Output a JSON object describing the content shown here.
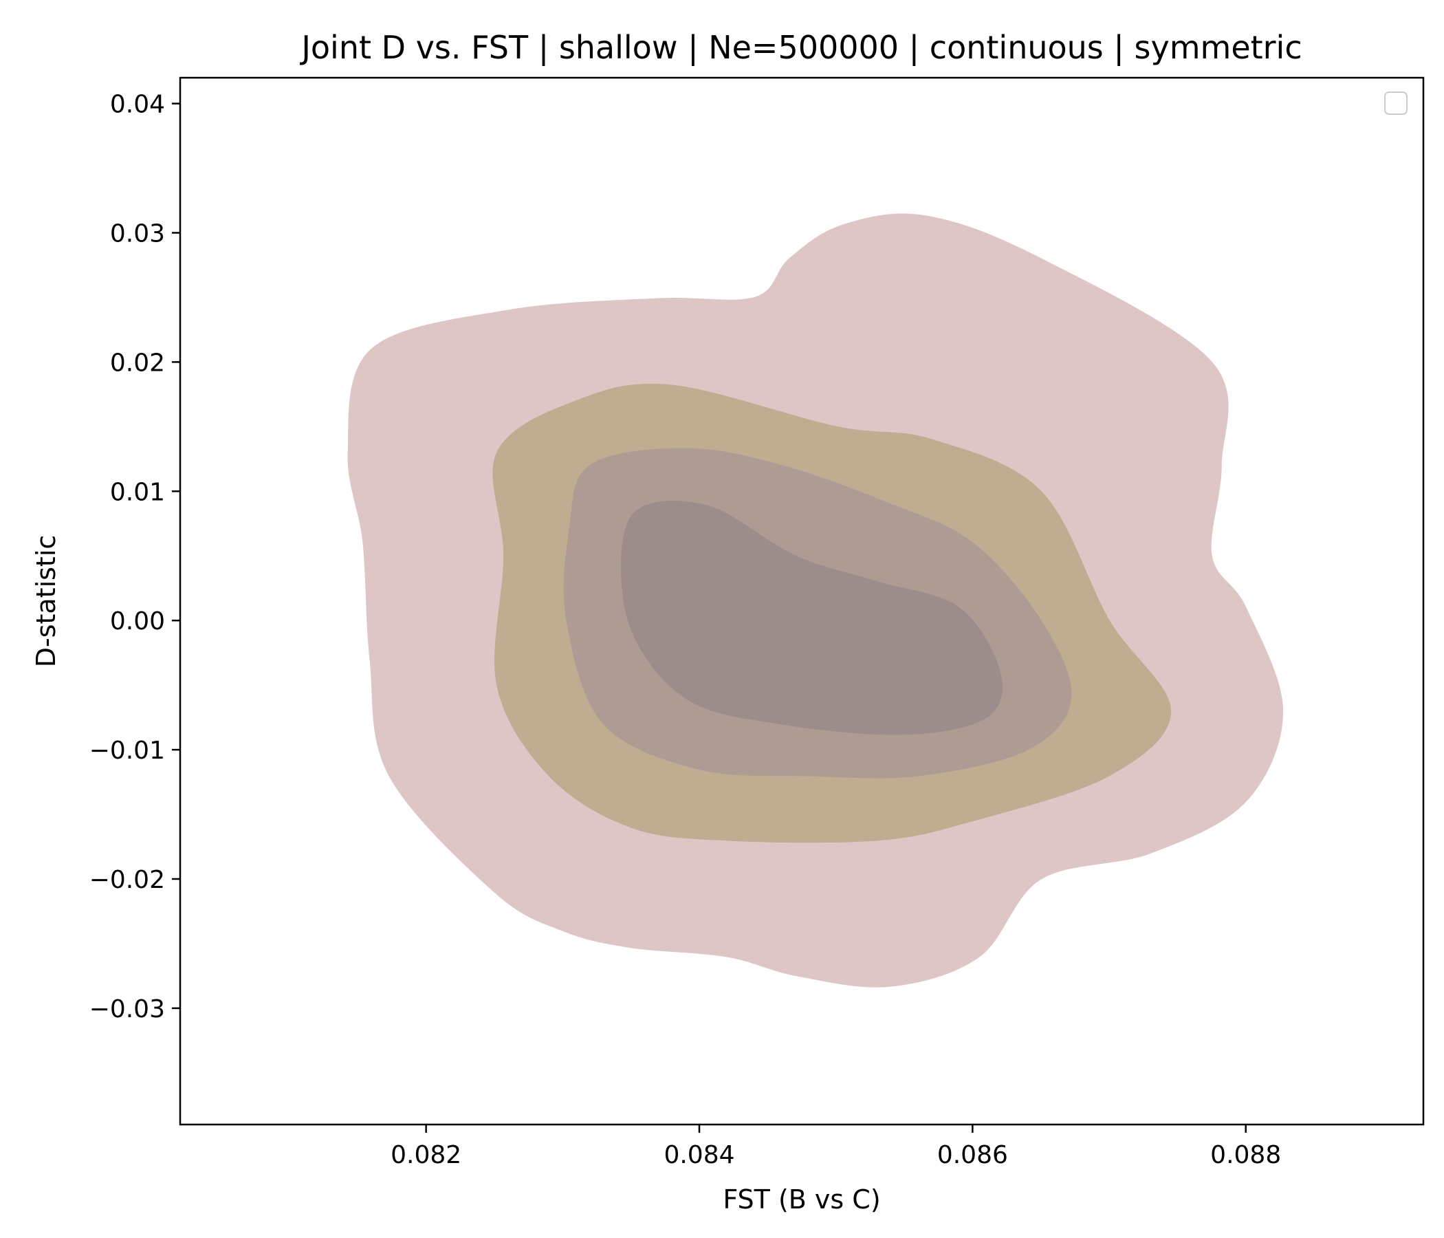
{
  "chart_data": {
    "type": "kde-contour",
    "title": "Joint D vs. FST | shallow | Ne=500000 | continuous | symmetric",
    "xlabel": "FST (B vs C)",
    "ylabel": "D-statistic",
    "xlim": [
      0.0802,
      0.0893
    ],
    "ylim": [
      -0.039,
      0.042
    ],
    "xticks": [
      0.082,
      0.084,
      0.086,
      0.088
    ],
    "xtick_labels": [
      "0.082",
      "0.084",
      "0.086",
      "0.088"
    ],
    "yticks": [
      0.04,
      0.03,
      0.02,
      0.01,
      0.0,
      -0.01,
      -0.02,
      -0.03
    ],
    "ytick_labels": [
      "0.04",
      "0.03",
      "0.02",
      "0.01",
      "0.00",
      "−0.01",
      "−0.02",
      "−0.03"
    ],
    "grid": false,
    "legend": {
      "placement": "upper-right",
      "entries": []
    },
    "contour_levels": [
      {
        "level": 1,
        "color": "#dfc6c6",
        "points": [
          [
            0.08566,
            0.0313
          ],
          [
            0.08505,
            0.0306
          ],
          [
            0.08466,
            0.028
          ],
          [
            0.08441,
            0.025
          ],
          [
            0.0837,
            0.0249
          ],
          [
            0.0826,
            0.024
          ],
          [
            0.0816,
            0.021
          ],
          [
            0.08143,
            0.013
          ],
          [
            0.08154,
            0.006
          ],
          [
            0.08159,
            -0.003
          ],
          [
            0.08173,
            -0.012
          ],
          [
            0.0825,
            -0.021
          ],
          [
            0.083,
            -0.024
          ],
          [
            0.0835,
            -0.0253
          ],
          [
            0.0842,
            -0.026
          ],
          [
            0.08472,
            -0.0275
          ],
          [
            0.0854,
            -0.0283
          ],
          [
            0.08605,
            -0.026
          ],
          [
            0.0865,
            -0.02
          ],
          [
            0.0873,
            -0.018
          ],
          [
            0.088,
            -0.014
          ],
          [
            0.08827,
            -0.007
          ],
          [
            0.088,
            0.001
          ],
          [
            0.08775,
            0.005
          ],
          [
            0.08782,
            0.012
          ],
          [
            0.08775,
            0.02
          ],
          [
            0.0865,
            0.028
          ]
        ]
      },
      {
        "level": 2,
        "color": "#c0ac90",
        "points": [
          [
            0.0838,
            0.0182
          ],
          [
            0.0831,
            0.017
          ],
          [
            0.08252,
            0.013
          ],
          [
            0.08257,
            0.005
          ],
          [
            0.08252,
            -0.005
          ],
          [
            0.0829,
            -0.012
          ],
          [
            0.0835,
            -0.016
          ],
          [
            0.0842,
            -0.017
          ],
          [
            0.0853,
            -0.017
          ],
          [
            0.086,
            -0.0155
          ],
          [
            0.087,
            -0.012
          ],
          [
            0.08745,
            -0.007
          ],
          [
            0.087,
            0.0
          ],
          [
            0.0865,
            0.01
          ],
          [
            0.0857,
            0.014
          ],
          [
            0.085,
            0.015
          ]
        ]
      },
      {
        "level": 3,
        "color": "#ad9b94",
        "points": [
          [
            0.0839,
            0.0133
          ],
          [
            0.0832,
            0.012
          ],
          [
            0.08305,
            0.007
          ],
          [
            0.08303,
            0.0
          ],
          [
            0.0833,
            -0.008
          ],
          [
            0.084,
            -0.0115
          ],
          [
            0.0848,
            -0.012
          ],
          [
            0.0856,
            -0.012
          ],
          [
            0.0864,
            -0.01
          ],
          [
            0.08672,
            -0.006
          ],
          [
            0.0865,
            0.0
          ],
          [
            0.086,
            0.006
          ],
          [
            0.0854,
            0.009
          ],
          [
            0.0846,
            0.012
          ]
        ]
      },
      {
        "level": 4,
        "color": "#9c8c8a",
        "points": [
          [
            0.08405,
            0.0089
          ],
          [
            0.0835,
            0.008
          ],
          [
            0.08348,
            0.0
          ],
          [
            0.0839,
            -0.006
          ],
          [
            0.0846,
            -0.008
          ],
          [
            0.0855,
            -0.0088
          ],
          [
            0.0861,
            -0.0075
          ],
          [
            0.0862,
            -0.004
          ],
          [
            0.0859,
            0.001
          ],
          [
            0.0853,
            0.003
          ],
          [
            0.0847,
            0.005
          ]
        ]
      }
    ]
  }
}
